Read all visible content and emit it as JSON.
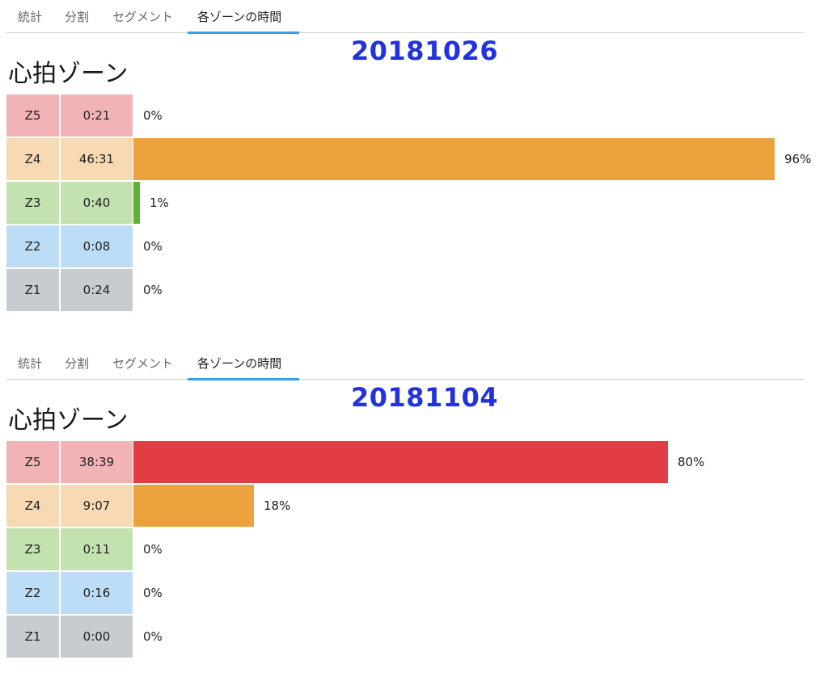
{
  "tabs_labels": [
    "統計",
    "分割",
    "セグメント",
    "各ゾーンの時間"
  ],
  "zone_colors": {
    "Z5": {
      "cell": "#f2b3b6",
      "bar": "#e23c45"
    },
    "Z4": {
      "cell": "#f7d9b3",
      "bar": "#eba13c"
    },
    "Z3": {
      "cell": "#c4e1b0",
      "bar": "#5db134"
    },
    "Z2": {
      "cell": "#bddcf5",
      "bar": "#4aa3e6"
    },
    "Z1": {
      "cell": "#c7ccd1",
      "bar": "#8a949c"
    }
  },
  "accent_color": "#3aa0e6",
  "date_color": "#2233dd",
  "panels": [
    {
      "date": "20181026",
      "title": "心拍ゾーン",
      "tabs": [
        {
          "label": "統計",
          "active": false
        },
        {
          "label": "分割",
          "active": false
        },
        {
          "label": "セグメント",
          "active": false
        },
        {
          "label": "各ゾーンの時間",
          "active": true
        }
      ],
      "rows": [
        {
          "zone": "Z5",
          "time": "0:21",
          "percent_label": "0%",
          "fraction": 0.0
        },
        {
          "zone": "Z4",
          "time": "46:31",
          "percent_label": "96%",
          "fraction": 0.96
        },
        {
          "zone": "Z3",
          "time": "0:40",
          "percent_label": "1%",
          "fraction": 0.01
        },
        {
          "zone": "Z2",
          "time": "0:08",
          "percent_label": "0%",
          "fraction": 0.0
        },
        {
          "zone": "Z1",
          "time": "0:24",
          "percent_label": "0%",
          "fraction": 0.0
        }
      ]
    },
    {
      "date": "20181104",
      "title": "心拍ゾーン",
      "tabs": [
        {
          "label": "統計",
          "active": false
        },
        {
          "label": "分割",
          "active": false
        },
        {
          "label": "セグメント",
          "active": false
        },
        {
          "label": "各ゾーンの時間",
          "active": true
        }
      ],
      "rows": [
        {
          "zone": "Z5",
          "time": "38:39",
          "percent_label": "80%",
          "fraction": 0.8
        },
        {
          "zone": "Z4",
          "time": "9:07",
          "percent_label": "18%",
          "fraction": 0.18
        },
        {
          "zone": "Z3",
          "time": "0:11",
          "percent_label": "0%",
          "fraction": 0.0
        },
        {
          "zone": "Z2",
          "time": "0:16",
          "percent_label": "0%",
          "fraction": 0.0
        },
        {
          "zone": "Z1",
          "time": "0:00",
          "percent_label": "0%",
          "fraction": 0.0
        }
      ]
    }
  ]
}
